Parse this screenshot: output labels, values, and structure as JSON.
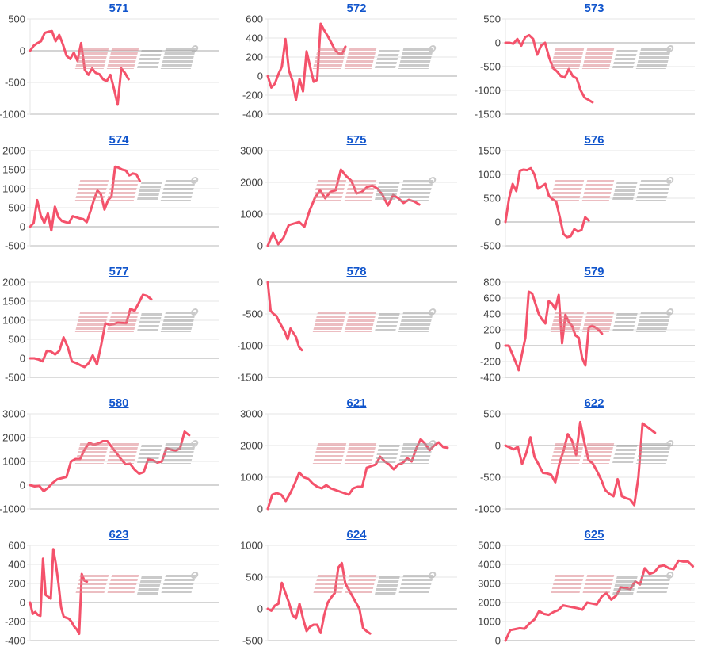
{
  "page": {
    "background": "#ffffff"
  },
  "watermark": {
    "text": "みんレポ",
    "pink_color": "#dd8890",
    "gray_color": "#9f9f9f",
    "opacity": 0.55
  },
  "style": {
    "series_color": "#f4526b",
    "grid_color": "#e6e6e6",
    "zero_line_color": "#aaaaaa",
    "baseline_color": "#b8b8b8",
    "axis_label_color": "#404040",
    "title_link_color": "#1155cc"
  },
  "chart_data": [
    {
      "type": "line",
      "title": "571",
      "grid": "horizontal",
      "legend": "none",
      "y_ticks": [
        500,
        0,
        -500,
        -1000
      ],
      "ylim": [
        -1000,
        500
      ],
      "x_fraction": 0.52,
      "values": [
        0,
        80,
        120,
        150,
        280,
        300,
        310,
        150,
        250,
        100,
        -80,
        -130,
        -30,
        -160,
        120,
        -300,
        -380,
        -280,
        -350,
        -370,
        -450,
        -480,
        -380,
        -600,
        -850,
        -280,
        -350,
        -450
      ]
    },
    {
      "type": "line",
      "title": "572",
      "grid": "horizontal",
      "legend": "none",
      "y_ticks": [
        600,
        400,
        200,
        0,
        -200,
        -400
      ],
      "ylim": [
        -400,
        600
      ],
      "x_fraction": 0.41,
      "values": [
        0,
        -120,
        -80,
        20,
        100,
        390,
        60,
        -50,
        -250,
        -30,
        -160,
        260,
        100,
        -60,
        -40,
        550,
        480,
        420,
        350,
        280,
        240,
        230,
        310
      ]
    },
    {
      "type": "line",
      "title": "573",
      "grid": "horizontal",
      "legend": "none",
      "y_ticks": [
        500,
        0,
        -500,
        -1000,
        -1500
      ],
      "ylim": [
        -1500,
        500
      ],
      "x_fraction": 0.46,
      "values": [
        0,
        0,
        -20,
        80,
        -60,
        120,
        160,
        80,
        -250,
        -60,
        0,
        -300,
        -530,
        -600,
        -700,
        -730,
        -550,
        -700,
        -750,
        -1000,
        -1150,
        -1200,
        -1250
      ]
    },
    {
      "type": "line",
      "title": "574",
      "grid": "horizontal",
      "legend": "none",
      "y_ticks": [
        2000,
        1500,
        1000,
        500,
        0,
        -500
      ],
      "ylim": [
        -500,
        2000
      ],
      "x_fraction": 0.58,
      "values": [
        0,
        100,
        700,
        300,
        100,
        350,
        -100,
        530,
        250,
        150,
        120,
        100,
        280,
        250,
        220,
        200,
        120,
        400,
        700,
        950,
        850,
        450,
        700,
        800,
        1580,
        1550,
        1500,
        1480,
        1350,
        1400,
        1380,
        1200
      ]
    },
    {
      "type": "line",
      "title": "575",
      "grid": "horizontal",
      "legend": "none",
      "y_ticks": [
        3000,
        2000,
        1000,
        0
      ],
      "ylim": [
        0,
        3000
      ],
      "x_fraction": 0.8,
      "values": [
        0,
        400,
        50,
        250,
        650,
        700,
        750,
        600,
        1100,
        1500,
        1750,
        1500,
        1700,
        1750,
        2400,
        2200,
        2050,
        1650,
        1700,
        1850,
        1900,
        1800,
        1600,
        1270,
        1600,
        1500,
        1350,
        1450,
        1400,
        1300
      ]
    },
    {
      "type": "line",
      "title": "576",
      "grid": "horizontal",
      "legend": "none",
      "y_ticks": [
        1500,
        1000,
        500,
        0,
        -500
      ],
      "ylim": [
        -500,
        1500
      ],
      "x_fraction": 0.44,
      "values": [
        0,
        500,
        800,
        650,
        1080,
        1100,
        1090,
        1130,
        1000,
        700,
        750,
        800,
        550,
        480,
        430,
        100,
        -250,
        -320,
        -300,
        -150,
        -200,
        -170,
        100,
        30
      ]
    },
    {
      "type": "line",
      "title": "577",
      "grid": "horizontal",
      "legend": "none",
      "y_ticks": [
        2000,
        1500,
        1000,
        500,
        0,
        -500
      ],
      "ylim": [
        -500,
        2000
      ],
      "x_fraction": 0.64,
      "values": [
        0,
        0,
        -30,
        -80,
        200,
        180,
        100,
        200,
        550,
        300,
        -80,
        -120,
        -180,
        -230,
        -130,
        80,
        -160,
        350,
        920,
        880,
        900,
        940,
        930,
        920,
        1300,
        1250,
        1450,
        1670,
        1640,
        1550
      ]
    },
    {
      "type": "line",
      "title": "578",
      "grid": "horizontal",
      "legend": "none",
      "y_ticks": [
        0,
        -500,
        -1000,
        -1500
      ],
      "ylim": [
        -1500,
        0
      ],
      "x_fraction": 0.18,
      "values": [
        0,
        -450,
        -500,
        -530,
        -620,
        -700,
        -780,
        -900,
        -730,
        -800,
        -870,
        -1020,
        -1070
      ]
    },
    {
      "type": "line",
      "title": "579",
      "grid": "horizontal",
      "legend": "none",
      "y_ticks": [
        800,
        600,
        400,
        200,
        0,
        -200,
        -400
      ],
      "ylim": [
        -400,
        800
      ],
      "x_fraction": 0.51,
      "values": [
        0,
        0,
        -100,
        -200,
        -310,
        -100,
        100,
        680,
        660,
        530,
        400,
        330,
        280,
        560,
        530,
        460,
        640,
        30,
        390,
        300,
        250,
        130,
        100,
        -150,
        -250,
        230,
        250,
        230,
        200,
        150
      ]
    },
    {
      "type": "line",
      "title": "580",
      "grid": "horizontal",
      "legend": "none",
      "y_ticks": [
        3000,
        2000,
        1000,
        0,
        -1000
      ],
      "ylim": [
        -1000,
        3000
      ],
      "x_fraction": 0.84,
      "values": [
        0,
        -50,
        -30,
        -250,
        -100,
        100,
        250,
        300,
        350,
        1000,
        1100,
        1100,
        1500,
        1780,
        1700,
        1750,
        1850,
        1850,
        1600,
        1350,
        1100,
        880,
        900,
        650,
        480,
        550,
        1100,
        1050,
        950,
        1000,
        1550,
        1500,
        1450,
        1550,
        2250,
        2100
      ]
    },
    {
      "type": "line",
      "title": "621",
      "grid": "horizontal",
      "legend": "none",
      "y_ticks": [
        3000,
        2000,
        1000,
        0
      ],
      "ylim": [
        0,
        3000
      ],
      "x_fraction": 0.95,
      "values": [
        0,
        450,
        500,
        450,
        250,
        500,
        800,
        1150,
        1000,
        950,
        800,
        700,
        650,
        750,
        650,
        600,
        550,
        500,
        450,
        650,
        700,
        700,
        1300,
        1350,
        1400,
        1650,
        1500,
        1400,
        1250,
        1400,
        1450,
        1600,
        1500,
        1900,
        2200,
        2050,
        1850,
        2000,
        2100,
        1950,
        1930
      ]
    },
    {
      "type": "line",
      "title": "622",
      "grid": "horizontal",
      "legend": "none",
      "y_ticks": [
        500,
        0,
        -500,
        -1000
      ],
      "ylim": [
        -1000,
        500
      ],
      "x_fraction": 0.79,
      "values": [
        0,
        -30,
        -60,
        -20,
        -290,
        -120,
        130,
        -180,
        -300,
        -430,
        -440,
        -460,
        -580,
        -280,
        -80,
        180,
        80,
        -150,
        370,
        50,
        -230,
        -280,
        -400,
        -530,
        -700,
        -760,
        -800,
        -530,
        -800,
        -830,
        -850,
        -940,
        -500,
        350,
        300,
        250,
        200
      ]
    },
    {
      "type": "line",
      "title": "623",
      "grid": "horizontal",
      "legend": "none",
      "y_ticks": [
        600,
        400,
        200,
        0,
        -200,
        -400
      ],
      "ylim": [
        -400,
        600
      ],
      "x_fraction": 0.3,
      "values": [
        0,
        -120,
        -100,
        -130,
        -140,
        460,
        80,
        60,
        40,
        560,
        400,
        200,
        -50,
        -150,
        -160,
        -170,
        -200,
        -250,
        -280,
        -330,
        300,
        230,
        220
      ]
    },
    {
      "type": "line",
      "title": "624",
      "grid": "horizontal",
      "legend": "none",
      "y_ticks": [
        1000,
        500,
        0,
        -500
      ],
      "ylim": [
        -500,
        1000
      ],
      "x_fraction": 0.54,
      "values": [
        0,
        -30,
        50,
        80,
        410,
        250,
        100,
        -100,
        -150,
        80,
        -150,
        -350,
        -280,
        -250,
        -250,
        -380,
        -100,
        100,
        180,
        250,
        650,
        720,
        400,
        300,
        200,
        100,
        0,
        -300,
        -350,
        -390
      ]
    },
    {
      "type": "line",
      "title": "625",
      "grid": "horizontal",
      "legend": "none",
      "y_ticks": [
        5000,
        4000,
        3000,
        2000,
        1000,
        0
      ],
      "ylim": [
        0,
        5000
      ],
      "x_fraction": 0.99,
      "values": [
        0,
        550,
        600,
        650,
        620,
        900,
        1100,
        1550,
        1400,
        1350,
        1500,
        1600,
        1850,
        1800,
        1750,
        1700,
        1620,
        2000,
        1950,
        1900,
        2300,
        2500,
        2150,
        2350,
        2800,
        2750,
        2700,
        3100,
        2950,
        3800,
        3500,
        3600,
        3900,
        3950,
        3800,
        3750,
        4200,
        4150,
        4150,
        3900
      ]
    }
  ]
}
